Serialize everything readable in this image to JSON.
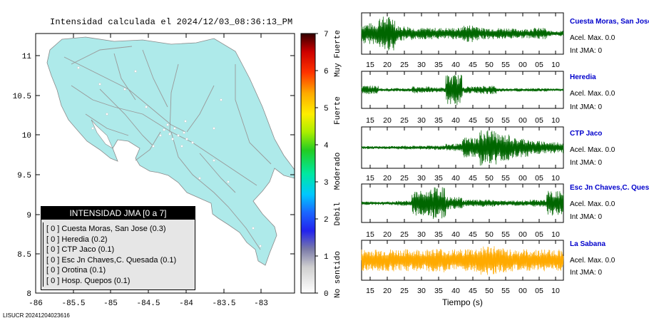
{
  "map": {
    "title": "Intensidad calculada el 2024/12/03_08:36:13_PM",
    "lon_ticks": [
      "-86",
      "-85.5",
      "-85",
      "-84.5",
      "-84",
      "-83.5",
      "-83"
    ],
    "lat_ticks": [
      "11",
      "10.5",
      "10",
      "9.5",
      "9",
      "8.5",
      "8"
    ],
    "land_color": "#aeeaea",
    "road_color": "#999999"
  },
  "colorbar": {
    "ticks": [
      "0",
      "1",
      "2",
      "3",
      "4",
      "5",
      "6",
      "7"
    ],
    "categories": [
      "No sentido",
      "Debil",
      "Moderado",
      "Fuerte",
      "Muy Fuerte"
    ]
  },
  "legend": {
    "title": "INTENSIDAD JMA [0 a 7]",
    "rows": [
      "[ 0 ]  Cuesta Moras, San Jose (0.3)",
      "[ 0 ]  Heredia (0.2)",
      "[ 0 ]  CTP Jaco (0.1)",
      "[ 0 ]  Esc Jn Chaves,C. Quesada (0.1)",
      "[ 0 ]  Orotina (0.1)",
      "[ 0 ]  Hosp. Quepos (0.1)"
    ]
  },
  "seismograms": {
    "time_ticks": [
      "15",
      "20",
      "25",
      "30",
      "35",
      "40",
      "45",
      "50",
      "55",
      "00",
      "05",
      "10"
    ],
    "xlabel": "Tiempo (s)",
    "stations": [
      {
        "name": "Cuesta Moras, San Jose",
        "acel": "Acel. Max. 0.0",
        "int": "Int JMA: 0",
        "color": "#006600",
        "envelope": [
          0.55,
          0.9,
          0.4,
          0.3,
          0.3,
          0.3,
          0.45,
          0.3,
          0.3,
          0.25,
          0.3,
          0.15
        ]
      },
      {
        "name": "Heredia",
        "acel": "Acel. Max. 0.0",
        "int": "Int JMA: 0",
        "color": "#006600",
        "envelope": [
          0.25,
          0.1,
          0.1,
          0.2,
          0.15,
          0.9,
          0.2,
          0.25,
          0.1,
          0.1,
          0.1,
          0.08
        ]
      },
      {
        "name": "CTP Jaco",
        "acel": "Acel. Max. 0.0",
        "int": "Int JMA: 0",
        "color": "#006600",
        "envelope": [
          0.08,
          0.08,
          0.1,
          0.1,
          0.12,
          0.2,
          0.55,
          0.95,
          0.7,
          0.5,
          0.35,
          0.3
        ]
      },
      {
        "name": "Esc Jn Chaves,C. Ques",
        "acel": "Acel. Max. 0.0",
        "int": "Int JMA: 0",
        "color": "#006600",
        "envelope": [
          0.1,
          0.1,
          0.15,
          0.7,
          0.9,
          0.35,
          0.2,
          0.2,
          0.15,
          0.15,
          0.2,
          0.7
        ]
      },
      {
        "name": "La Sabana",
        "acel": "Acel. Max. 0.0",
        "int": "Int JMA: 0",
        "color": "#ffaa00",
        "envelope": [
          0.6,
          0.6,
          0.6,
          0.6,
          0.65,
          0.6,
          0.65,
          0.8,
          0.65,
          0.6,
          0.6,
          0.6
        ]
      }
    ]
  },
  "footer": "LISUCR 20241204023616"
}
